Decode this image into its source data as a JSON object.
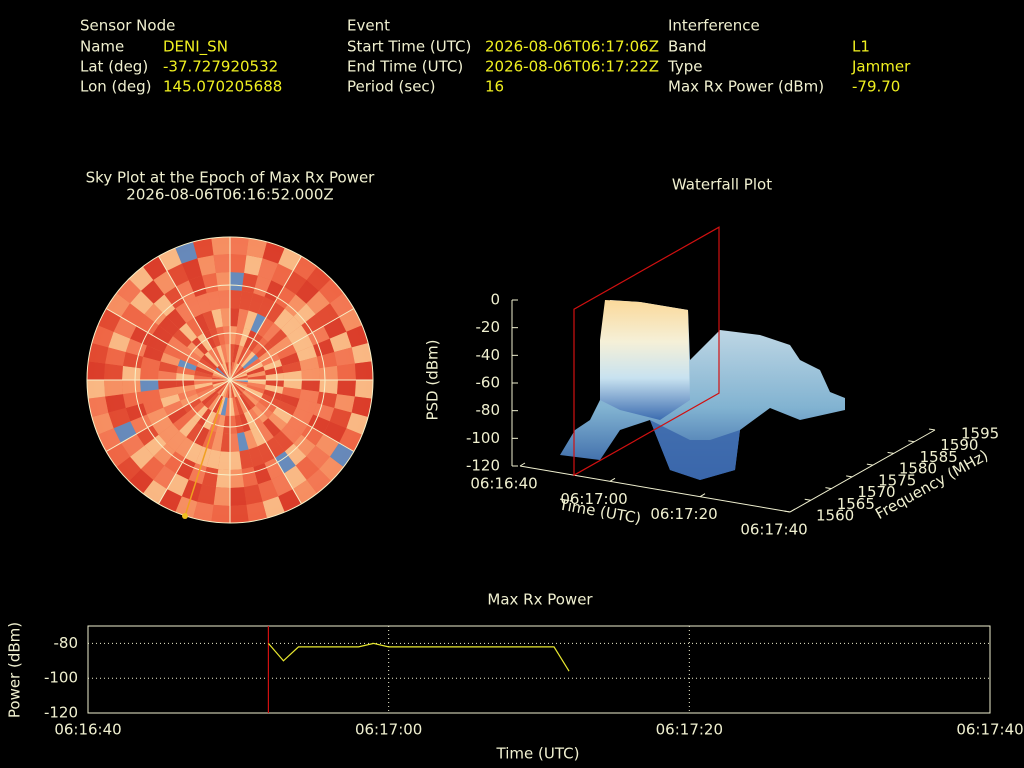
{
  "info": [
    {
      "header": "Sensor Node",
      "fields": [
        {
          "label": "Name",
          "value": "DENI_SN"
        },
        {
          "label": "Lat (deg)",
          "value": "-37.727920532"
        },
        {
          "label": "Lon (deg)",
          "value": "145.070205688"
        }
      ]
    },
    {
      "header": "Event",
      "fields": [
        {
          "label": "Start Time (UTC)",
          "value": "2026-08-06T06:17:06Z"
        },
        {
          "label": "End Time (UTC)",
          "value": "2026-08-06T06:17:22Z"
        },
        {
          "label": "Period (sec)",
          "value": "16"
        }
      ]
    },
    {
      "header": "Interference",
      "fields": [
        {
          "label": "Band",
          "value": "L1"
        },
        {
          "label": "Type",
          "value": "Jammer"
        },
        {
          "label": "Max Rx Power (dBm)",
          "value": "-79.70"
        }
      ]
    }
  ],
  "chart_data": [
    {
      "type": "polar",
      "title": "Sky Plot at the Epoch of Max Rx Power",
      "subtitle": "2026-08-06T06:16:52.000Z"
    },
    {
      "type": "surface3d",
      "title": "Waterfall Plot",
      "xlabel": "Time (UTC)",
      "ylabel": "Frequency (MHz)",
      "zlabel": "PSD (dBm)",
      "xlim": [
        "06:16:40",
        "06:17:40"
      ],
      "xticks": [
        "06:16:40",
        "06:17:00",
        "06:17:20",
        "06:17:40"
      ],
      "ylim": [
        1560,
        1595
      ],
      "yticks": [
        1560,
        1565,
        1570,
        1575,
        1580,
        1585,
        1590,
        1595
      ],
      "zlim": [
        -120,
        0
      ],
      "zticks": [
        0,
        -20,
        -40,
        -60,
        -80,
        -100,
        -120
      ],
      "marker_x": "06:16:52",
      "marker_color": "#d01010"
    },
    {
      "type": "line",
      "title": "Max Rx Power",
      "xlabel": "Time (UTC)",
      "ylabel": "Power (dBm)",
      "x": [
        "06:16:52",
        "06:16:53",
        "06:16:54",
        "06:16:55",
        "06:16:56",
        "06:16:57",
        "06:16:58",
        "06:16:59",
        "06:17:00",
        "06:17:01",
        "06:17:02",
        "06:17:03",
        "06:17:04",
        "06:17:05",
        "06:17:06",
        "06:17:07",
        "06:17:08",
        "06:17:09",
        "06:17:10",
        "06:17:11",
        "06:17:12"
      ],
      "values": [
        -80,
        -90,
        -82,
        -82,
        -82,
        -82,
        -82,
        -80,
        -82,
        -82,
        -82,
        -82,
        -82,
        -82,
        -82,
        -82,
        -82,
        -82,
        -82,
        -82,
        -96
      ],
      "color": "#e8e830",
      "xlim": [
        "06:16:40",
        "06:17:40"
      ],
      "xticks": [
        "06:16:40",
        "06:17:00",
        "06:17:20",
        "06:17:40"
      ],
      "ylim": [
        -120,
        -70
      ],
      "yticks": [
        -80,
        -100,
        -120
      ],
      "grid": true,
      "marker_x": "06:16:52",
      "marker_color": "#d01010"
    }
  ]
}
